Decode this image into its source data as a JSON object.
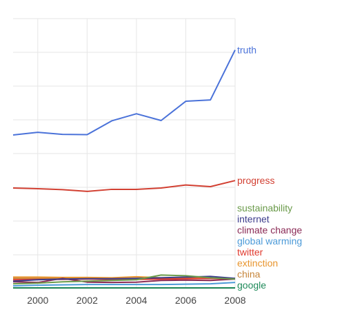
{
  "chart_data": {
    "type": "line",
    "title": "",
    "xlabel": "",
    "ylabel": "",
    "grid": true,
    "legend": "right-end-labels",
    "x": [
      1999,
      2000,
      2001,
      2002,
      2003,
      2004,
      2005,
      2006,
      2007,
      2008
    ],
    "xlim": [
      1999,
      2008
    ],
    "ylim": [
      0,
      8
    ],
    "x_ticks": [
      "2000",
      "2002",
      "2004",
      "2006",
      "2008"
    ],
    "series": [
      {
        "name": "truth",
        "color": "#4a72d9",
        "values": [
          4.55,
          4.63,
          4.57,
          4.56,
          4.97,
          5.18,
          4.98,
          5.55,
          5.59,
          7.07
        ]
      },
      {
        "name": "progress",
        "color": "#d23f31",
        "values": [
          2.98,
          2.96,
          2.93,
          2.88,
          2.94,
          2.94,
          2.98,
          3.07,
          3.02,
          3.2
        ]
      },
      {
        "name": "sustainability",
        "color": "#6a9a4a",
        "values": [
          0.14,
          0.16,
          0.2,
          0.22,
          0.24,
          0.26,
          0.4,
          0.38,
          0.32,
          0.28
        ]
      },
      {
        "name": "internet",
        "color": "#3c3c8c",
        "values": [
          0.22,
          0.26,
          0.28,
          0.29,
          0.29,
          0.3,
          0.32,
          0.34,
          0.36,
          0.3
        ]
      },
      {
        "name": "climate change",
        "color": "#8a2a55",
        "values": [
          0.2,
          0.18,
          0.3,
          0.19,
          0.18,
          0.19,
          0.24,
          0.25,
          0.24,
          0.28
        ]
      },
      {
        "name": "global warming",
        "color": "#4c9ad8",
        "values": [
          0.08,
          0.1,
          0.11,
          0.12,
          0.12,
          0.12,
          0.12,
          0.13,
          0.14,
          0.18
        ]
      },
      {
        "name": "twitter",
        "color": "#e03a2e",
        "values": [
          0.26,
          0.27,
          0.27,
          0.28,
          0.27,
          0.27,
          0.28,
          0.29,
          0.3,
          0.29
        ]
      },
      {
        "name": "extinction",
        "color": "#e8952e",
        "values": [
          0.34,
          0.34,
          0.33,
          0.33,
          0.32,
          0.35,
          0.32,
          0.33,
          0.31,
          0.3
        ]
      },
      {
        "name": "china",
        "color": "#c6853a",
        "values": [
          0.3,
          0.3,
          0.31,
          0.31,
          0.3,
          0.3,
          0.31,
          0.3,
          0.3,
          0.29
        ]
      },
      {
        "name": "google",
        "color": "#1f8a5a",
        "values": [
          0.02,
          0.02,
          0.02,
          0.02,
          0.02,
          0.02,
          0.02,
          0.02,
          0.02,
          0.02
        ]
      }
    ]
  }
}
